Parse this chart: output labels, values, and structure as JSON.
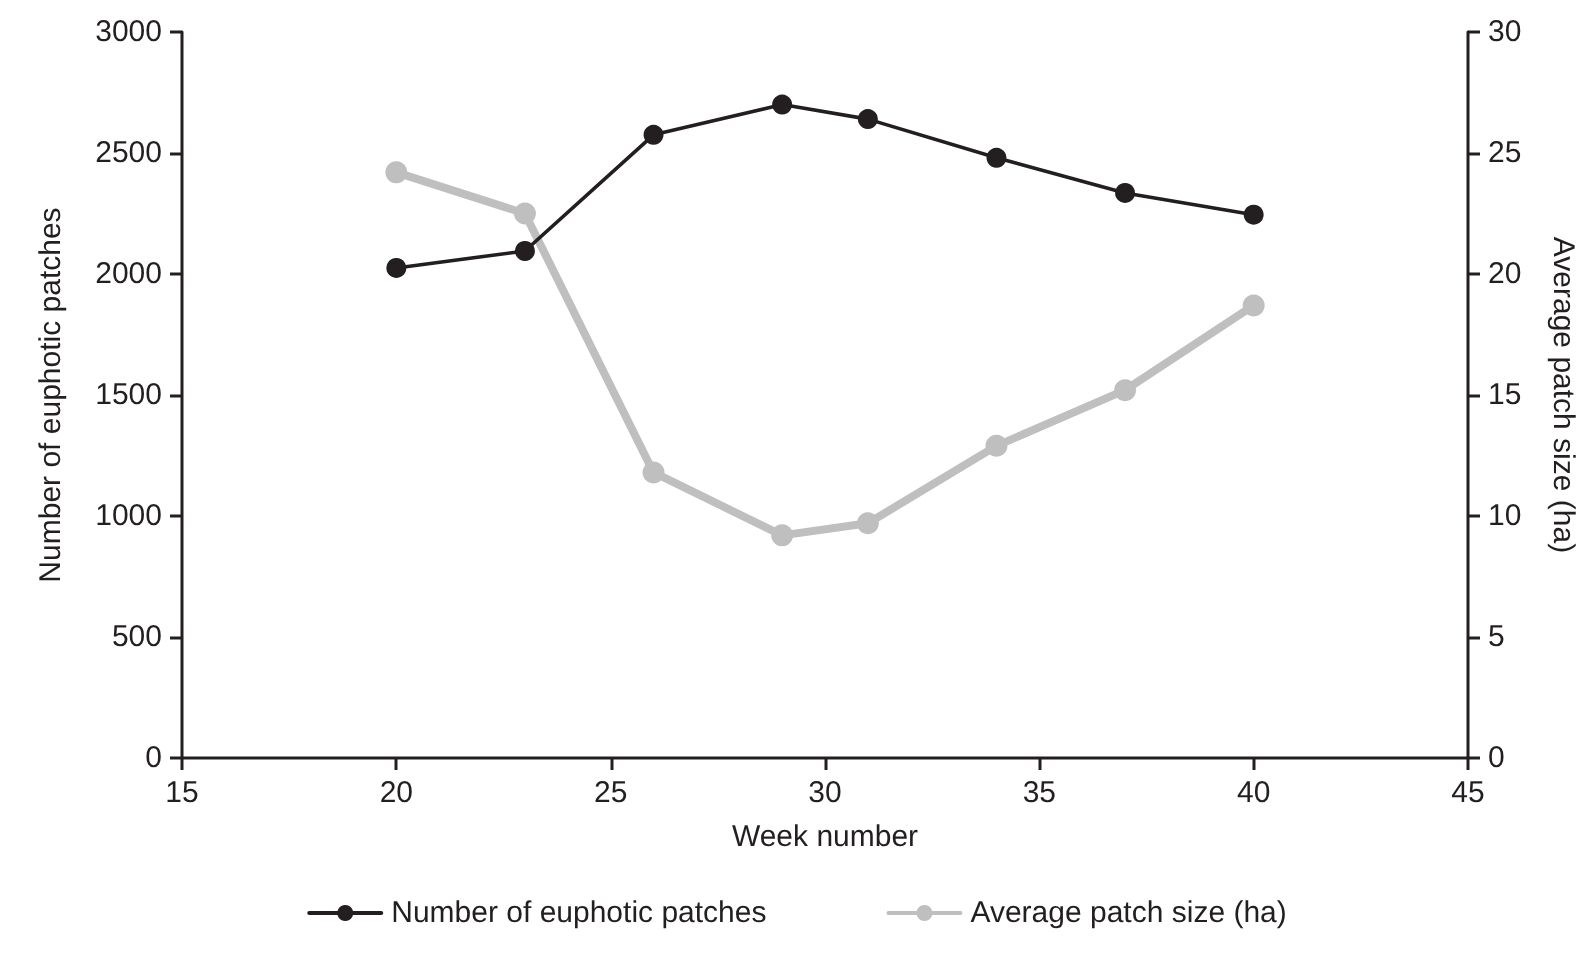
{
  "chart_data": {
    "type": "line",
    "xlabel": "Week number",
    "ylabel": "Number of euphotic patches",
    "y2label": "Average patch size (ha)",
    "x": [
      20,
      23,
      26,
      29,
      31,
      34,
      37,
      40
    ],
    "series": [
      {
        "name": "Number of euphotic patches",
        "color": "#231f20",
        "values": [
          2025,
          2095,
          2575,
          2700,
          2640,
          2480,
          2335,
          2245
        ]
      },
      {
        "name": "Average patch size (ha)",
        "color": "#bfbfbf",
        "axis": "y2",
        "values": [
          24.2,
          22.5,
          11.8,
          9.2,
          9.7,
          12.9,
          15.2,
          18.7
        ]
      }
    ],
    "xlim": [
      15,
      45
    ],
    "xticks": [
      15,
      20,
      25,
      30,
      35,
      40,
      45
    ],
    "ylim": [
      0,
      3000
    ],
    "yticks": [
      0,
      500,
      1000,
      1500,
      2000,
      2500,
      3000
    ],
    "y2lim": [
      0,
      30
    ],
    "y2ticks": [
      0,
      5,
      10,
      15,
      20,
      25,
      30
    ],
    "grid": false,
    "legend": "bottom",
    "marker": "circle",
    "line_style": "solid"
  }
}
